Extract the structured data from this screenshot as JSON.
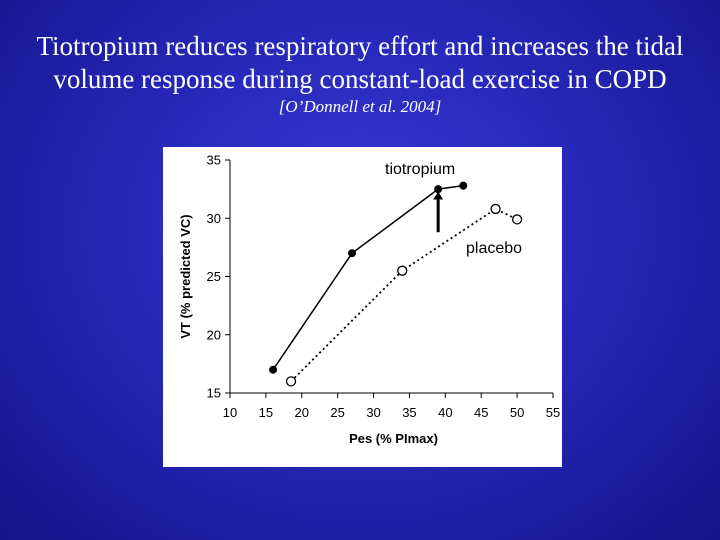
{
  "slide": {
    "title_line1": "Tiotropium reduces respiratory effort and increases the tidal",
    "title_line2": "volume response during constant-load exercise in COPD",
    "citation": "[O’Donnell et al. 2004]"
  },
  "chart_data": {
    "type": "line",
    "xlabel": "Pes (% PImax)",
    "ylabel": "VT (% predicted VC)",
    "xlim": [
      10,
      55
    ],
    "ylim": [
      15,
      35
    ],
    "xticks": [
      10,
      15,
      20,
      25,
      30,
      35,
      40,
      45,
      50,
      55
    ],
    "yticks": [
      15,
      20,
      25,
      30,
      35
    ],
    "grid": false,
    "series": [
      {
        "name": "tiotropium",
        "line_style": "solid",
        "marker": "filled-circle",
        "x": [
          16,
          27,
          39,
          42.5
        ],
        "y": [
          17,
          27,
          32.5,
          32.8
        ]
      },
      {
        "name": "placebo",
        "line_style": "dotted",
        "marker": "open-circle",
        "x": [
          18.5,
          34,
          47,
          50
        ],
        "y": [
          16,
          25.5,
          30.8,
          29.9
        ]
      }
    ],
    "annotations": [
      {
        "text": "tiotropium"
      },
      {
        "text": "placebo"
      }
    ],
    "arrow": {
      "x": 39,
      "from_y": 28.8,
      "to_y": 32.3
    }
  }
}
